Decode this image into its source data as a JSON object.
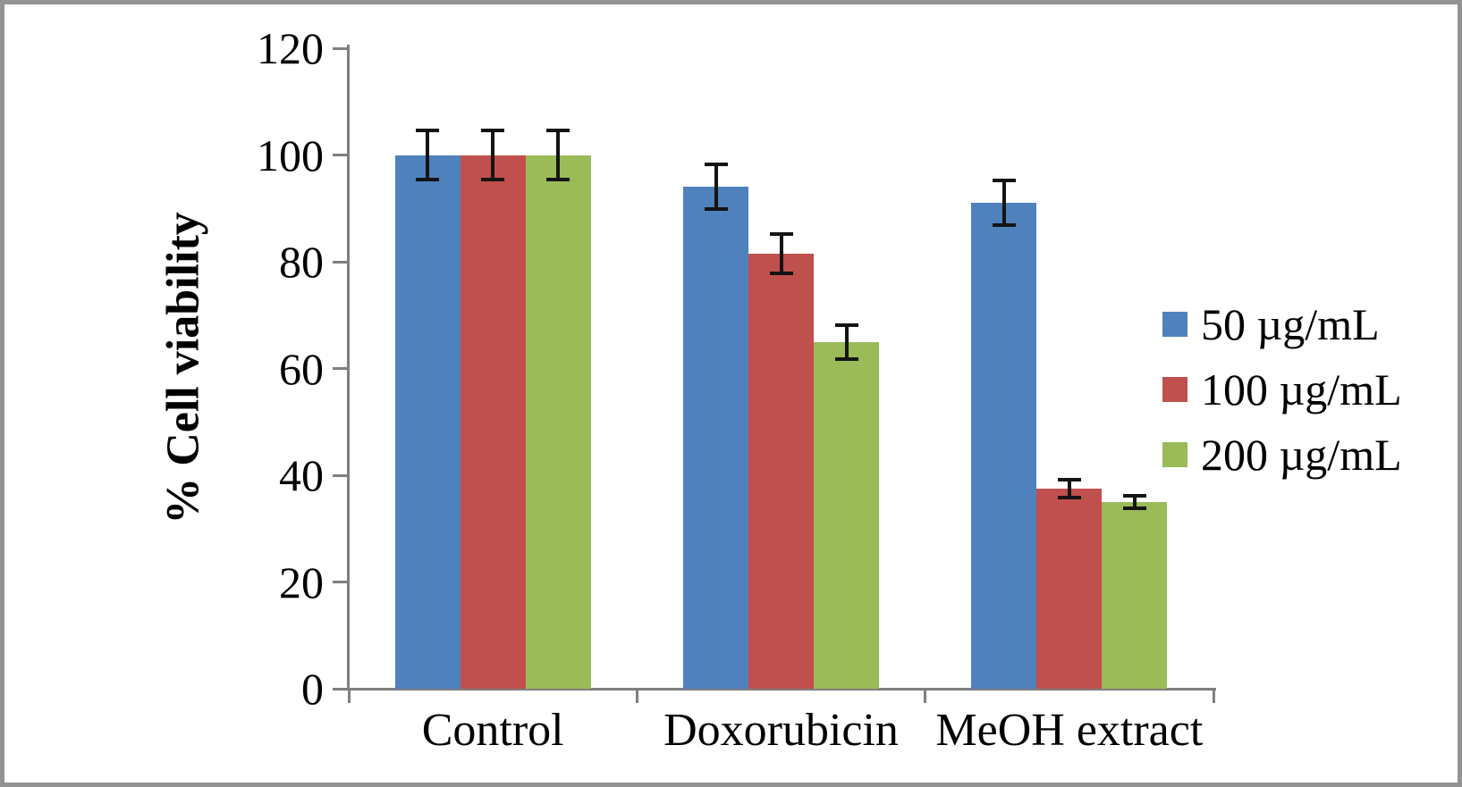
{
  "chart_data": {
    "type": "bar",
    "title": "",
    "xlabel": "",
    "ylabel": "% Cell viability",
    "categories": [
      "Control",
      "Doxorubicin",
      "MeOH extract"
    ],
    "series": [
      {
        "name": "50 µg/mL",
        "color": "#4F81BD",
        "values": [
          100,
          94,
          91
        ],
        "errors": [
          5,
          4.5,
          4.5
        ]
      },
      {
        "name": "100 µg/mL",
        "color": "#C0504D",
        "values": [
          100,
          81.5,
          37.5
        ],
        "errors": [
          5,
          4,
          2
        ]
      },
      {
        "name": "200 µg/mL",
        "color": "#9BBB59",
        "values": [
          100,
          65,
          35
        ],
        "errors": [
          5,
          3.5,
          1.5
        ]
      }
    ],
    "ylim": [
      0,
      120
    ],
    "yticks": [
      0,
      20,
      40,
      60,
      80,
      100,
      120
    ],
    "grid": false,
    "legend_position": "right",
    "error_bars": true
  },
  "colors": {
    "axis": "#7f7f7f",
    "frame_border": "#939393",
    "error_bar": "#141414",
    "background": "#ffffff",
    "text": "#000000"
  }
}
